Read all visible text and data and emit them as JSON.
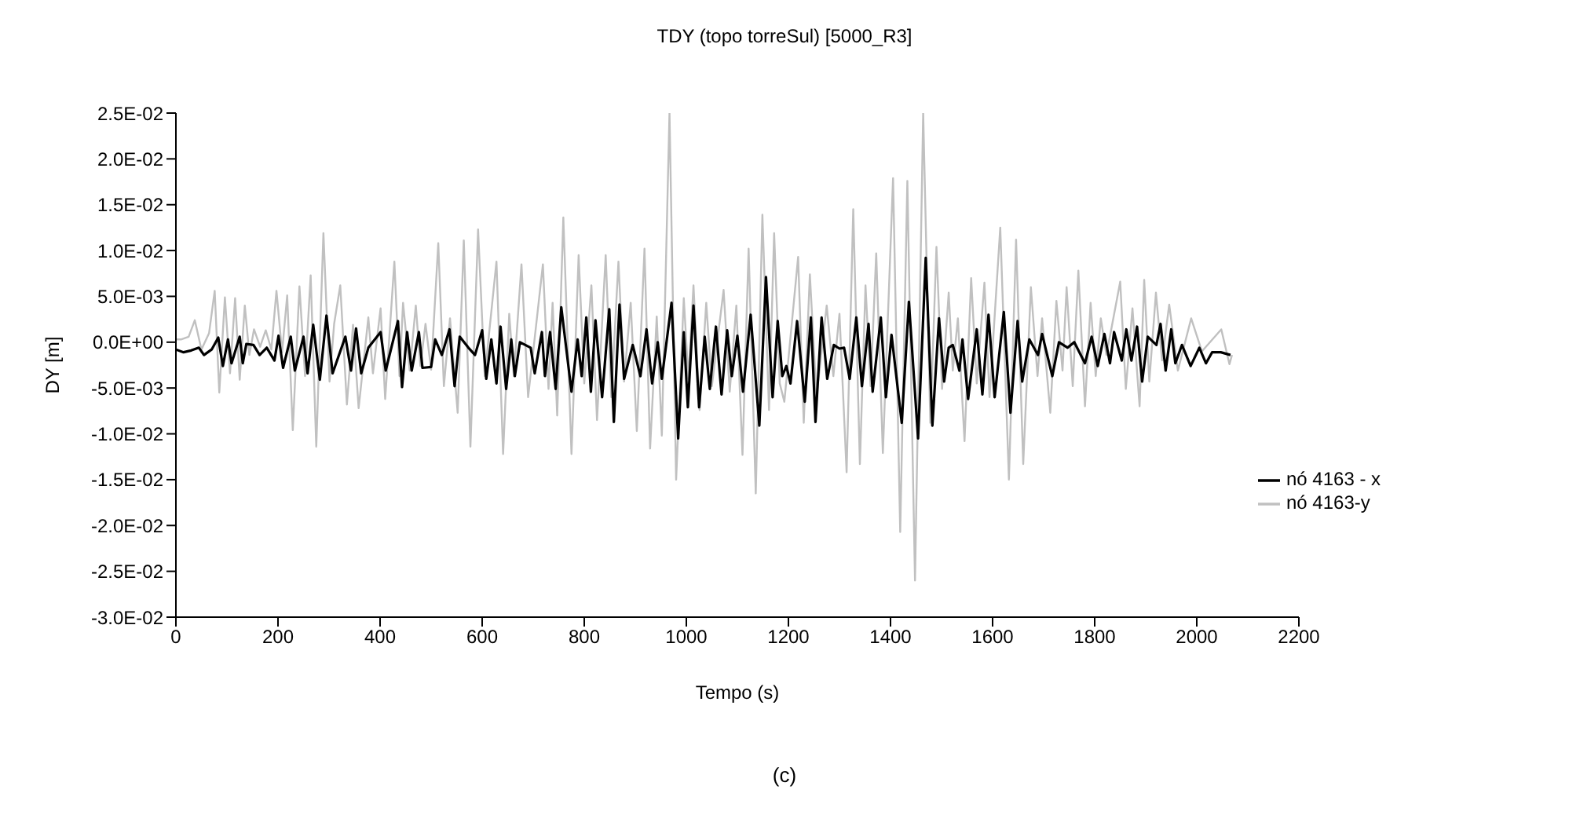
{
  "chart_data": {
    "type": "line",
    "title": "TDY (topo torreSul)  [5000_R3]",
    "xlabel": "Tempo (s)",
    "ylabel": "DY [m]",
    "annotations": [
      "(c)"
    ],
    "legend": "right",
    "grid": false,
    "marker": "none",
    "xlim": [
      0,
      2200
    ],
    "xticks": [
      0,
      200,
      400,
      600,
      800,
      1000,
      1200,
      1400,
      1600,
      1800,
      2000,
      2200
    ],
    "ylim": [
      -0.03,
      0.025
    ],
    "yticks": [
      {
        "value": -0.03,
        "label": "-3.0E-02"
      },
      {
        "value": -0.025,
        "label": "-2.5E-02"
      },
      {
        "value": -0.02,
        "label": "-2.0E-02"
      },
      {
        "value": -0.015,
        "label": "-1.5E-02"
      },
      {
        "value": -0.01,
        "label": "-1.0E-02"
      },
      {
        "value": -0.005,
        "label": "-5.0E-03"
      },
      {
        "value": 0,
        "label": "0.0E+00"
      },
      {
        "value": 0.005,
        "label": "5.0E-03"
      },
      {
        "value": 0.01,
        "label": "1.0E-02"
      },
      {
        "value": 0.015,
        "label": "1.5E-02"
      },
      {
        "value": 0.02,
        "label": "2.0E-02"
      },
      {
        "value": 0.025,
        "label": "2.5E-02"
      }
    ],
    "series": [
      {
        "name": "nó 4163-y",
        "color": "#c0c0c0",
        "x": [
          0,
          10,
          25,
          37,
          50,
          65,
          76,
          85,
          96,
          106,
          116,
          125,
          135,
          144,
          153,
          165,
          176,
          187,
          197,
          208,
          218,
          229,
          242,
          253,
          264,
          275,
          289,
          301,
          310,
          322,
          335,
          347,
          358,
          377,
          386,
          401,
          410,
          428,
          438,
          445,
          458,
          470,
          479,
          489,
          500,
          514,
          525,
          537,
          552,
          564,
          577,
          592,
          605,
          628,
          641,
          653,
          662,
          677,
          690,
          719,
          730,
          738,
          747,
          759,
          775,
          789,
          800,
          814,
          825,
          842,
          853,
          867,
          878,
          891,
          903,
          918,
          929,
          942,
          952,
          967,
          980,
          995,
          1004,
          1014,
          1026,
          1039,
          1050,
          1073,
          1085,
          1098,
          1110,
          1122,
          1136,
          1149,
          1162,
          1172,
          1183,
          1192,
          1219,
          1230,
          1242,
          1255,
          1275,
          1288,
          1300,
          1314,
          1327,
          1340,
          1351,
          1361,
          1372,
          1385,
          1405,
          1419,
          1433,
          1448,
          1464,
          1478,
          1490,
          1501,
          1514,
          1522,
          1532,
          1545,
          1558,
          1569,
          1584,
          1594,
          1615,
          1632,
          1646,
          1660,
          1675,
          1688,
          1697,
          1713,
          1725,
          1737,
          1745,
          1757,
          1768,
          1781,
          1792,
          1802,
          1812,
          1823,
          1850,
          1861,
          1874,
          1888,
          1897,
          1907,
          1920,
          1932,
          1946,
          1963,
          1989,
          2010,
          2048,
          2064,
          2069
        ],
        "values": [
          0.0003,
          0.0003,
          0.0006,
          0.0024,
          -0.0008,
          0.001,
          0.0056,
          -0.0055,
          0.0049,
          -0.0034,
          0.0048,
          -0.0041,
          0.004,
          -0.0014,
          0.0014,
          -0.0005,
          0.0013,
          -0.0008,
          0.0056,
          -0.0011,
          0.0051,
          -0.0096,
          0.0061,
          -0.0037,
          0.0073,
          -0.0114,
          0.0119,
          -0.0043,
          0.002,
          0.0062,
          -0.0068,
          0.0019,
          -0.0072,
          0.0027,
          -0.0034,
          0.0037,
          -0.0062,
          0.0088,
          -0.0037,
          0.0043,
          -0.0031,
          0.004,
          -0.0026,
          0.002,
          -0.003,
          0.0108,
          -0.0048,
          0.0026,
          -0.0077,
          0.0111,
          -0.0114,
          0.0123,
          -0.0037,
          0.0088,
          -0.0122,
          0.0031,
          -0.0037,
          0.0085,
          -0.006,
          0.0085,
          -0.0051,
          0.0043,
          -0.008,
          0.0136,
          -0.0122,
          0.0095,
          -0.0045,
          0.0062,
          -0.0085,
          0.0095,
          -0.006,
          0.0088,
          -0.0043,
          0.0043,
          -0.0097,
          0.0102,
          -0.0116,
          0.0028,
          -0.0102,
          0.025,
          -0.015,
          0.0048,
          -0.004,
          0.0062,
          -0.0074,
          0.0043,
          -0.0048,
          0.0057,
          -0.0054,
          0.004,
          -0.0123,
          0.0102,
          -0.0165,
          0.0139,
          -0.0074,
          0.0119,
          -0.0045,
          -0.0065,
          0.0093,
          -0.0088,
          0.0074,
          -0.006,
          0.004,
          -0.0037,
          0.0031,
          -0.0142,
          0.0145,
          -0.0133,
          0.0062,
          -0.0048,
          0.0097,
          -0.0121,
          0.0179,
          -0.0207,
          0.0176,
          -0.026,
          0.025,
          -0.0088,
          0.0104,
          -0.0051,
          0.0054,
          -0.0031,
          0.0026,
          -0.0108,
          0.007,
          -0.0045,
          0.0065,
          -0.006,
          0.0125,
          -0.015,
          0.0112,
          -0.0133,
          0.006,
          -0.0037,
          0.0026,
          -0.0077,
          0.0045,
          -0.0031,
          0.006,
          -0.0048,
          0.0078,
          -0.007,
          0.0043,
          -0.0037,
          0.0026,
          -0.0014,
          0.0066,
          -0.0051,
          0.0037,
          -0.007,
          0.0068,
          -0.0043,
          0.0054,
          -0.002,
          0.0041,
          -0.0031,
          0.0026,
          -0.001,
          0.0014,
          -0.0024,
          -0.0014
        ]
      },
      {
        "name": "nó 4163 - x",
        "color": "#000000",
        "x": [
          0,
          15,
          30,
          45,
          55,
          70,
          83,
          92,
          102,
          109,
          125,
          131,
          138,
          152,
          164,
          178,
          193,
          201,
          210,
          225,
          233,
          250,
          258,
          269,
          282,
          295,
          307,
          332,
          343,
          353,
          363,
          377,
          401,
          411,
          435,
          443,
          453,
          462,
          476,
          483,
          500,
          508,
          521,
          536,
          546,
          556,
          573,
          586,
          600,
          608,
          618,
          628,
          636,
          647,
          657,
          664,
          674,
          695,
          703,
          717,
          723,
          733,
          744,
          755,
          775,
          787,
          795,
          804,
          813,
          822,
          835,
          849,
          858,
          869,
          878,
          895,
          910,
          922,
          933,
          944,
          952,
          971,
          984,
          995,
          1003,
          1014,
          1025,
          1036,
          1046,
          1058,
          1069,
          1080,
          1089,
          1100,
          1111,
          1126,
          1143,
          1156,
          1169,
          1179,
          1188,
          1196,
          1204,
          1217,
          1232,
          1244,
          1253,
          1265,
          1276,
          1289,
          1300,
          1309,
          1320,
          1333,
          1344,
          1357,
          1365,
          1381,
          1391,
          1402,
          1422,
          1436,
          1454,
          1469,
          1482,
          1495,
          1505,
          1514,
          1522,
          1535,
          1541,
          1552,
          1569,
          1580,
          1592,
          1604,
          1622,
          1635,
          1649,
          1658,
          1672,
          1689,
          1697,
          1717,
          1730,
          1747,
          1760,
          1781,
          1794,
          1806,
          1819,
          1830,
          1838,
          1853,
          1862,
          1872,
          1883,
          1893,
          1904,
          1921,
          1929,
          1939,
          1950,
          1958,
          1971,
          1988,
          2005,
          2018,
          2030,
          2047,
          2066
        ],
        "values": [
          -0.0008,
          -0.0011,
          -0.0009,
          -0.0006,
          -0.0014,
          -0.0008,
          0.0005,
          -0.0026,
          0.0003,
          -0.0023,
          0.0006,
          -0.0023,
          -0.0002,
          -0.0003,
          -0.0014,
          -0.0006,
          -0.002,
          0.0007,
          -0.0028,
          0.0006,
          -0.0031,
          0.0006,
          -0.0034,
          0.0019,
          -0.0041,
          0.0029,
          -0.0034,
          0.0006,
          -0.0031,
          0.0015,
          -0.0034,
          -0.0006,
          0.0011,
          -0.0031,
          0.0023,
          -0.0049,
          0.0011,
          -0.0031,
          0.0011,
          -0.0028,
          -0.0027,
          0.0003,
          -0.0014,
          0.0014,
          -0.0048,
          0.0006,
          -0.0006,
          -0.0014,
          0.0013,
          -0.004,
          0.0003,
          -0.0045,
          0.0017,
          -0.0051,
          0.0003,
          -0.0037,
          0,
          -0.0006,
          -0.0034,
          0.0011,
          -0.0037,
          0.0011,
          -0.0051,
          0.0038,
          -0.0054,
          0.0003,
          -0.0037,
          0.0027,
          -0.0054,
          0.0024,
          -0.006,
          0.0036,
          -0.0087,
          0.0041,
          -0.004,
          -0.0003,
          -0.0037,
          0.0014,
          -0.0045,
          0,
          -0.004,
          0.0043,
          -0.0105,
          0.0011,
          -0.0071,
          0.004,
          -0.0071,
          0.0006,
          -0.0051,
          0.0017,
          -0.0057,
          0.0013,
          -0.0037,
          0.0007,
          -0.0054,
          0.003,
          -0.0091,
          0.0071,
          -0.006,
          0.0023,
          -0.0037,
          -0.0026,
          -0.0045,
          0.0023,
          -0.0065,
          0.0027,
          -0.0087,
          0.0027,
          -0.004,
          -0.0003,
          -0.0007,
          -0.0006,
          -0.004,
          0.0027,
          -0.0048,
          0.002,
          -0.0054,
          0.0027,
          -0.006,
          0.0008,
          -0.0088,
          0.0044,
          -0.0105,
          0.0092,
          -0.0091,
          0.0026,
          -0.0043,
          -0.0006,
          -0.0003,
          -0.0031,
          0.0003,
          -0.0062,
          0.0014,
          -0.0057,
          0.003,
          -0.006,
          0.0033,
          -0.0077,
          0.0023,
          -0.0043,
          0.0003,
          -0.0014,
          0.0009,
          -0.0037,
          0,
          -0.0006,
          0,
          -0.0023,
          0.0006,
          -0.0026,
          0.0009,
          -0.0023,
          0.0011,
          -0.002,
          0.0014,
          -0.002,
          0.0017,
          -0.0043,
          0.0006,
          -0.0003,
          0.002,
          -0.0031,
          0.0014,
          -0.0023,
          -0.0003,
          -0.0026,
          -0.0006,
          -0.0023,
          -0.0011,
          -0.0011,
          -0.0014
        ]
      }
    ]
  }
}
